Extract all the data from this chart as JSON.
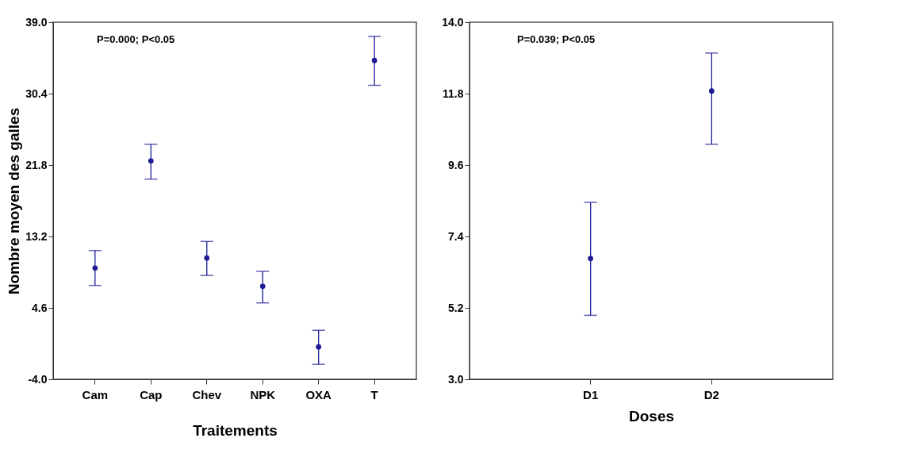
{
  "chart_data": [
    {
      "type": "scatter",
      "categories": [
        "Cam",
        "Cap",
        "Chev",
        "NPK",
        "OXA",
        "T"
      ],
      "xlabel": "Traitements",
      "ylabel": "Nombre moyen des galles",
      "marker": "circle",
      "color": "#1c1c96",
      "values": [
        9.4,
        22.3,
        10.6,
        7.2,
        -0.1,
        34.4
      ],
      "errors": [
        [
          7.3,
          11.5
        ],
        [
          20.1,
          24.3
        ],
        [
          8.5,
          12.6
        ],
        [
          5.2,
          9.0
        ],
        [
          -2.2,
          1.9
        ],
        [
          31.4,
          37.3
        ]
      ],
      "ylim": [
        -4.0,
        39.0
      ],
      "yticks": [
        {
          "value": -4.0,
          "label": "-4.0"
        },
        4.6,
        13.2,
        21.8,
        30.4,
        {
          "value": 39.0,
          "label": "39.0"
        }
      ],
      "grid": false,
      "annotations": [
        "P=0.000; P<0.05"
      ]
    },
    {
      "type": "scatter",
      "categories": [
        "D1",
        "D2"
      ],
      "xlabel": "Doses",
      "marker": "circle",
      "color": "#1c1c96",
      "values": [
        6.72,
        11.88
      ],
      "errors": [
        [
          4.97,
          8.45
        ],
        [
          10.24,
          13.05
        ]
      ],
      "ylim": [
        3.0,
        14.0
      ],
      "yticks": [
        {
          "value": 3.0,
          "label": "3.0"
        },
        5.2,
        7.4,
        9.6,
        11.8,
        {
          "value": 14.0,
          "label": "14.0"
        }
      ],
      "grid": false,
      "annotations": [
        "P=0.039; P<0.05"
      ]
    }
  ]
}
